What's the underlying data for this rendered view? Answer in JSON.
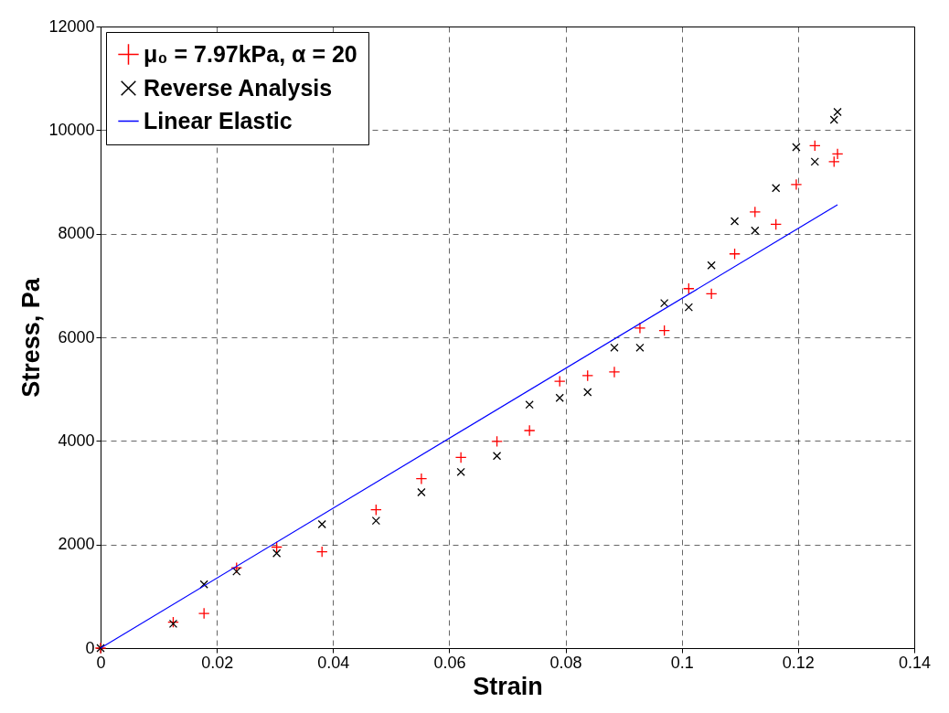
{
  "chart_data": {
    "type": "scatter",
    "xlabel": "Strain",
    "ylabel": "Stress, Pa",
    "xlim": [
      0,
      0.14
    ],
    "ylim": [
      0,
      12000
    ],
    "xticks": [
      0,
      0.02,
      0.04,
      0.06,
      0.08,
      0.1,
      0.12,
      0.14
    ],
    "yticks": [
      0,
      2000,
      4000,
      6000,
      8000,
      10000,
      12000
    ],
    "grid": true,
    "legend": "top left",
    "series": [
      {
        "name": "μ₀ = 7.97kPa, α = 20",
        "color": "#ff0000",
        "marker": "cross",
        "x": [
          0,
          0.0125,
          0.0178,
          0.0234,
          0.0303,
          0.0381,
          0.0474,
          0.0552,
          0.062,
          0.0682,
          0.0738,
          0.079,
          0.0838,
          0.0884,
          0.0928,
          0.097,
          0.1012,
          0.1051,
          0.1091,
          0.1126,
          0.1162,
          0.1197,
          0.1229,
          0.1262,
          0.1268
        ],
        "values": [
          0,
          500,
          670,
          1550,
          1950,
          1860,
          2670,
          3270,
          3680,
          3990,
          4200,
          5150,
          5260,
          5330,
          6180,
          6130,
          6940,
          6840,
          7610,
          8420,
          8180,
          8950,
          9700,
          9390,
          9540
        ]
      },
      {
        "name": "Reverse Analysis",
        "color": "#000000",
        "marker": "x",
        "x": [
          0,
          0.0125,
          0.0178,
          0.0234,
          0.0303,
          0.0381,
          0.0474,
          0.0552,
          0.062,
          0.0682,
          0.0738,
          0.079,
          0.0838,
          0.0884,
          0.0928,
          0.097,
          0.1012,
          0.1051,
          0.1091,
          0.1126,
          0.1162,
          0.1197,
          0.1229,
          0.1262,
          0.1268
        ],
        "values": [
          0,
          470,
          1230,
          1480,
          1830,
          2390,
          2460,
          3010,
          3400,
          3710,
          4700,
          4830,
          4940,
          5800,
          5800,
          6660,
          6580,
          7390,
          8240,
          8060,
          8880,
          9670,
          9390,
          10200,
          10350
        ]
      },
      {
        "name": "Linear Elastic",
        "type": "line",
        "color": "#0000ff",
        "line_style": "solid",
        "x": [
          0,
          0.1268
        ],
        "values": [
          0,
          8560
        ]
      }
    ]
  }
}
